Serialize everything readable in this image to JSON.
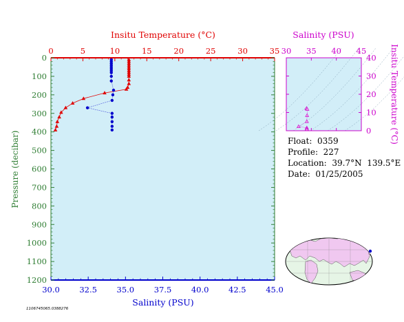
{
  "chart_data": [
    {
      "type": "line",
      "top_axis": {
        "label": "Insitu Temperature (°C)",
        "lim": [
          0,
          35
        ],
        "ticks": [
          "0",
          "5",
          "10",
          "15",
          "20",
          "25",
          "30",
          "35"
        ]
      },
      "bottom_axis": {
        "label": "Salinity (PSU)",
        "lim": [
          30,
          45
        ],
        "ticks": [
          "30.0",
          "32.5",
          "35.0",
          "37.5",
          "40.0",
          "42.5",
          "45.0"
        ]
      },
      "ylabel": "Pressure (decibar)",
      "ylim": [
        0,
        1200
      ],
      "y_ticks": [
        "0",
        "100",
        "200",
        "300",
        "400",
        "500",
        "600",
        "700",
        "800",
        "900",
        "1000",
        "1100",
        "1200"
      ],
      "y_inverted": true,
      "series": [
        {
          "key": "temperature",
          "axis": "top",
          "marker": "triangle",
          "color": "#e00000",
          "points": [
            {
              "x": 12.2,
              "y": 10
            },
            {
              "x": 12.2,
              "y": 20
            },
            {
              "x": 12.2,
              "y": 30
            },
            {
              "x": 12.2,
              "y": 40
            },
            {
              "x": 12.2,
              "y": 50
            },
            {
              "x": 12.2,
              "y": 60
            },
            {
              "x": 12.2,
              "y": 70
            },
            {
              "x": 12.2,
              "y": 80
            },
            {
              "x": 12.2,
              "y": 90
            },
            {
              "x": 12.2,
              "y": 100
            },
            {
              "x": 12.2,
              "y": 120
            },
            {
              "x": 12.2,
              "y": 140
            },
            {
              "x": 12.0,
              "y": 160
            },
            {
              "x": 11.8,
              "y": 170
            },
            {
              "x": 8.4,
              "y": 190
            },
            {
              "x": 5.1,
              "y": 220
            },
            {
              "x": 3.4,
              "y": 245
            },
            {
              "x": 2.3,
              "y": 270
            },
            {
              "x": 1.6,
              "y": 295
            },
            {
              "x": 1.3,
              "y": 320
            },
            {
              "x": 1.0,
              "y": 345
            },
            {
              "x": 0.9,
              "y": 370
            },
            {
              "x": 0.7,
              "y": 390
            }
          ]
        },
        {
          "key": "salinity",
          "axis": "bottom",
          "marker": "circle",
          "color": "#0000cc",
          "points": [
            {
              "x": 34.05,
              "y": 10
            },
            {
              "x": 34.05,
              "y": 20
            },
            {
              "x": 34.05,
              "y": 30
            },
            {
              "x": 34.05,
              "y": 40
            },
            {
              "x": 34.05,
              "y": 50
            },
            {
              "x": 34.05,
              "y": 60
            },
            {
              "x": 34.05,
              "y": 70
            },
            {
              "x": 34.05,
              "y": 80
            },
            {
              "x": 34.05,
              "y": 100
            },
            {
              "x": 34.05,
              "y": 125
            },
            {
              "x": 34.2,
              "y": 175
            },
            {
              "x": 34.15,
              "y": 200
            },
            {
              "x": 34.1,
              "y": 230
            },
            {
              "x": 32.45,
              "y": 270
            },
            {
              "x": 34.1,
              "y": 300
            },
            {
              "x": 34.1,
              "y": 320
            },
            {
              "x": 34.1,
              "y": 345
            },
            {
              "x": 34.1,
              "y": 370
            },
            {
              "x": 34.1,
              "y": 390
            }
          ]
        }
      ]
    },
    {
      "type": "scatter",
      "xlabel": "Salinity (PSU)",
      "ylabel": "Insitu Temperature (°C)",
      "xlim": [
        30,
        45
      ],
      "ylim": [
        0,
        40
      ],
      "x_ticks": [
        "30",
        "35",
        "40",
        "45"
      ],
      "y_ticks": [
        "0",
        "10",
        "20",
        "30",
        "40"
      ],
      "color": "#cc00cc",
      "points": [
        {
          "x": 34.05,
          "y": 12.2
        },
        {
          "x": 34.05,
          "y": 12.2
        },
        {
          "x": 34.2,
          "y": 11.8
        },
        {
          "x": 34.15,
          "y": 8.4
        },
        {
          "x": 34.1,
          "y": 5.1
        },
        {
          "x": 32.45,
          "y": 2.3
        },
        {
          "x": 34.1,
          "y": 1.6
        },
        {
          "x": 34.1,
          "y": 1.0
        },
        {
          "x": 34.1,
          "y": 0.7
        }
      ]
    }
  ],
  "info": {
    "float": "Float:  0359",
    "profile": "Profile:  227",
    "location": "Location:  39.7°N  139.5°E",
    "date": "Date:  01/25/2005"
  },
  "footer_code": "1106745065.0388276",
  "map": {
    "land_color": "#f0c8f0",
    "ocean_color": "#e6f5e6"
  },
  "colors": {
    "plot_bg": "#d2eef8",
    "temperature": "#e00000",
    "salinity": "#0000cc",
    "ts": "#cc00cc",
    "axis_green": "#2e7d32"
  }
}
